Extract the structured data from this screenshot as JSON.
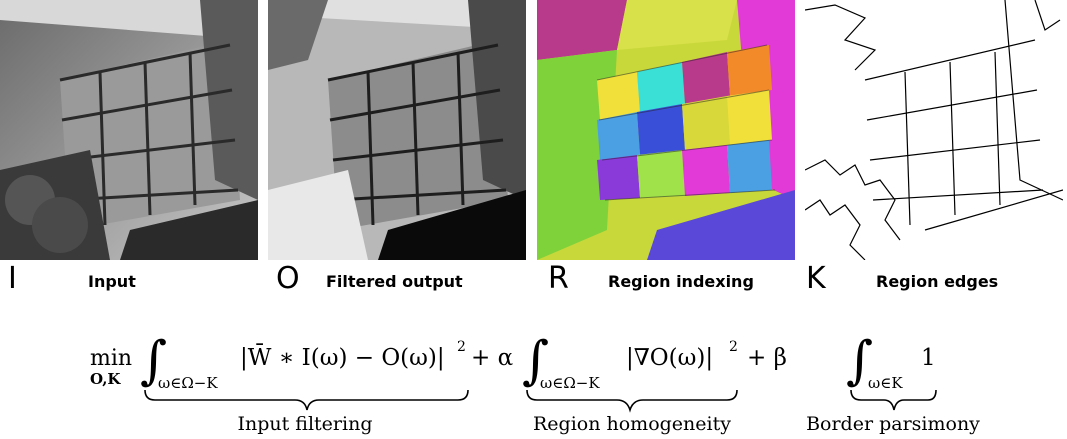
{
  "panels": [
    {
      "symbol": "I",
      "caption": "Input"
    },
    {
      "symbol": "O",
      "caption": "Filtered output"
    },
    {
      "symbol": "R",
      "caption": "Region indexing"
    },
    {
      "symbol": "K",
      "caption": "Region edges"
    }
  ],
  "equation": {
    "min_op": "min",
    "min_sub": "O,K",
    "term1": "|W̄ ∗ I(ω) − O(ω)|",
    "term1_sub": "ω∈Ω−K",
    "sq": "2",
    "plus_alpha": "+ α",
    "term2": "|∇O(ω)|",
    "term2_sub": "ω∈Ω−K",
    "plus_beta": "+ β",
    "term3": "1",
    "term3_sub": "ω∈K",
    "brace_labels": [
      "Input filtering",
      "Region homogeneity",
      "Border parsimony"
    ]
  },
  "colors": {
    "region_palette": [
      "#f2e03a",
      "#7fd23a",
      "#3a4fd8",
      "#f28a2a",
      "#e23ad6",
      "#3ae0d6",
      "#8a3ad8",
      "#d8d83a",
      "#e24a4a",
      "#4aa0e2",
      "#b83a8a",
      "#a0e24a"
    ]
  }
}
